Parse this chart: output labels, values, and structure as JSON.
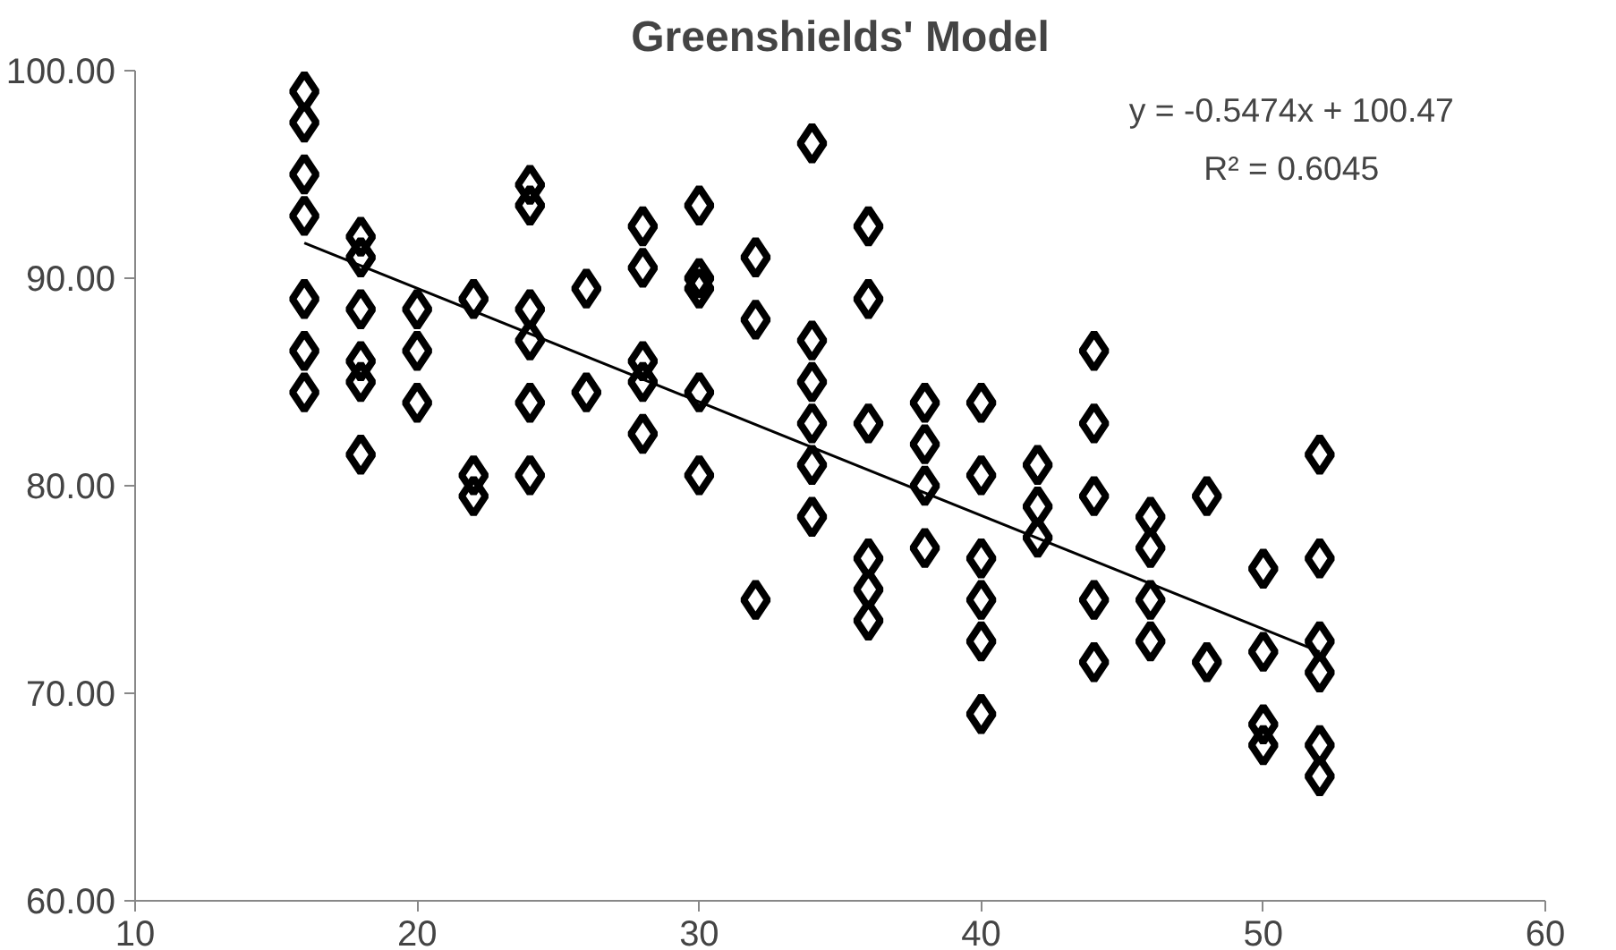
{
  "chart_data": {
    "type": "scatter",
    "title": "Greenshields' Model",
    "marker": "diamond",
    "grid": false,
    "xlim": [
      10,
      60
    ],
    "xticks": [
      10,
      20,
      30,
      40,
      50,
      60
    ],
    "ylim": [
      60,
      100
    ],
    "yticks": [
      {
        "value": 60,
        "label": "60.00"
      },
      {
        "value": 70,
        "label": "70.00"
      },
      {
        "value": 80,
        "label": "80.00"
      },
      {
        "value": 90,
        "label": "90.00"
      },
      {
        "value": 100,
        "label": "100.00"
      }
    ],
    "annotations": [
      "y = -0.5474x + 100.47",
      "R² = 0.6045"
    ],
    "series": [
      {
        "color": "#000000",
        "x": [
          16,
          16,
          16,
          16,
          16,
          16,
          16,
          18,
          18,
          18,
          18,
          18,
          18,
          20,
          20,
          20,
          22,
          22,
          22,
          24,
          24,
          24,
          24,
          24,
          24,
          26,
          26,
          28,
          28,
          28,
          28,
          28,
          30,
          30,
          30,
          30,
          30,
          32,
          32,
          32,
          34,
          34,
          34,
          34,
          34,
          34,
          36,
          36,
          36,
          36,
          36,
          36,
          38,
          38,
          38,
          38,
          40,
          40,
          40,
          40,
          40,
          40,
          42,
          42,
          42,
          44,
          44,
          44,
          44,
          44,
          46,
          46,
          46,
          46,
          48,
          48,
          50,
          50,
          50,
          50,
          52,
          52,
          52,
          52,
          52,
          52
        ],
        "values": [
          99,
          97.5,
          95,
          93,
          89,
          86.5,
          84.5,
          92,
          91,
          88.5,
          86,
          85,
          81.5,
          88.5,
          86.5,
          84,
          89,
          80.5,
          79.5,
          94.5,
          93.5,
          88.5,
          87,
          84,
          80.5,
          89.5,
          84.5,
          92.5,
          90.5,
          86,
          85,
          82.5,
          93.5,
          90,
          89.5,
          84.5,
          80.5,
          91,
          88,
          74.5,
          96.5,
          87,
          85,
          83,
          81,
          78.5,
          92.5,
          89,
          83,
          76.5,
          75,
          73.5,
          84,
          82,
          80,
          77,
          84,
          80.5,
          76.5,
          74.5,
          72.5,
          69,
          81,
          79,
          77.5,
          86.5,
          83,
          79.5,
          74.5,
          71.5,
          78.5,
          77,
          74.5,
          72.5,
          79.5,
          71.5,
          76,
          72,
          68.5,
          67.5,
          81.5,
          76.5,
          72.5,
          71,
          67.5,
          66
        ]
      },
      {
        "type": "line",
        "color": "#000000",
        "x": [
          16,
          52
        ],
        "values": [
          91.7,
          72.0
        ],
        "marker": "none"
      }
    ]
  }
}
